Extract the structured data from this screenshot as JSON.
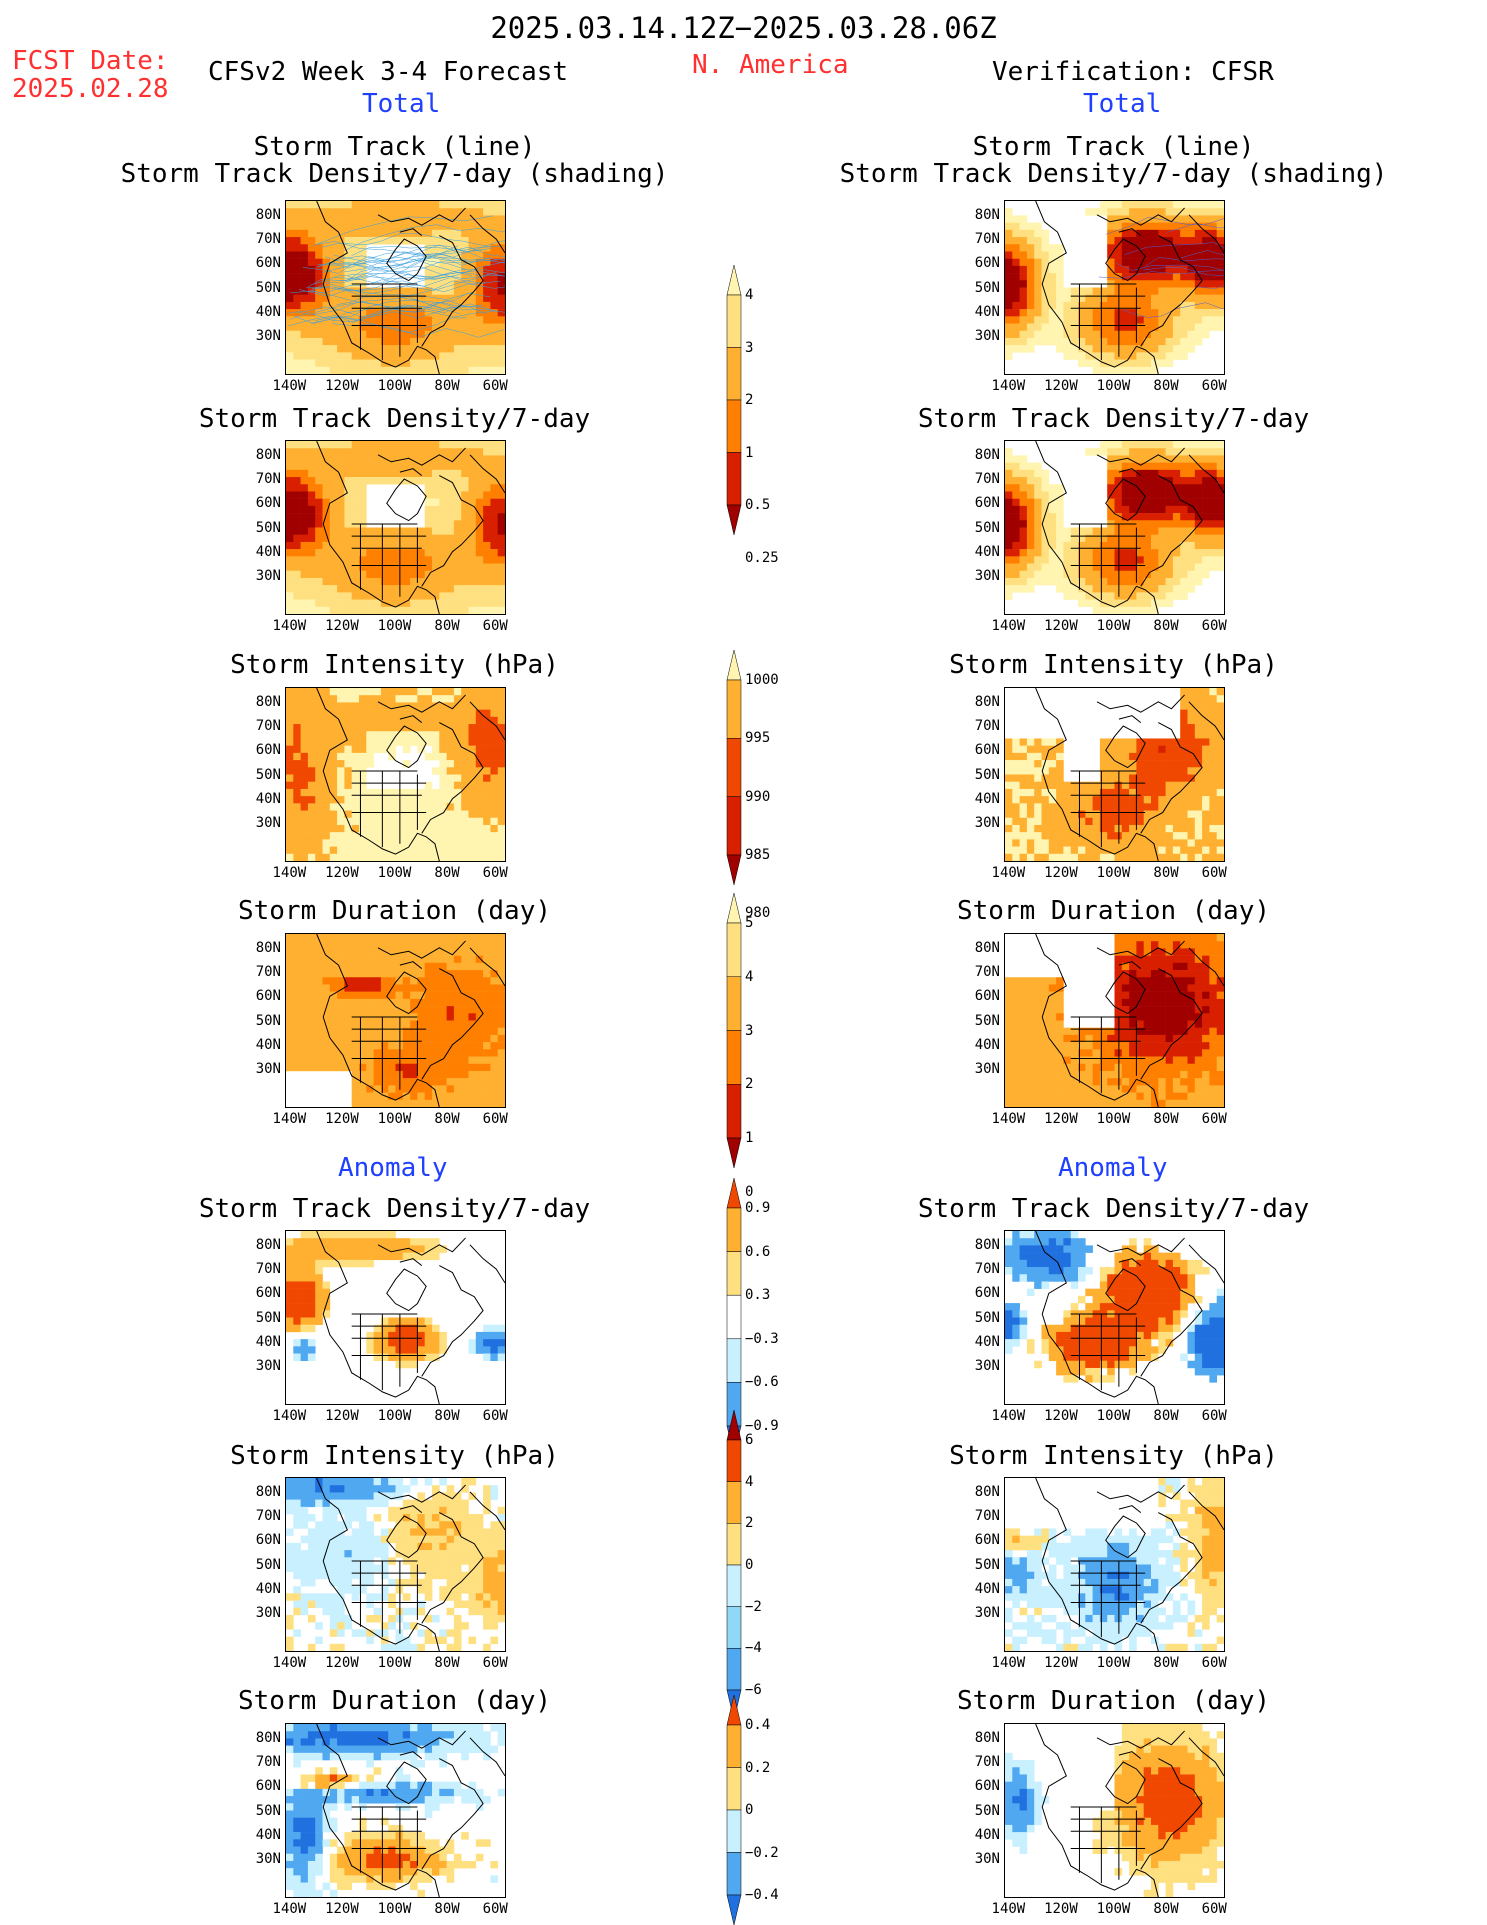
{
  "header": {
    "date_range": "2025.03.14.12Z−2025.03.28.06Z",
    "fcst_label": "FCST Date:",
    "fcst_date": "2025.02.28",
    "model_title": "CFSv2 Week 3-4 Forecast",
    "region": "N. America",
    "verification": "Verification: CFSR"
  },
  "sections": {
    "total": "Total",
    "anomaly": "Anomaly"
  },
  "panel_titles": {
    "storm_track_line": "Storm Track (line)",
    "storm_track_shading": "Storm Track Density/7-day (shading)",
    "density": "Storm Track Density/7-day",
    "intensity": "Storm Intensity (hPa)",
    "duration": "Storm Duration (day)"
  },
  "axes": {
    "lat_labels": [
      "80N",
      "70N",
      "60N",
      "50N",
      "40N",
      "30N"
    ],
    "lon_labels": [
      "140W",
      "120W",
      "100W",
      "80W",
      "60W"
    ]
  },
  "colorbars": {
    "density_total": [
      "4",
      "3",
      "2",
      "1",
      "0.5",
      "0.25"
    ],
    "intensity_total": [
      "1000",
      "995",
      "990",
      "985",
      "980"
    ],
    "duration_total": [
      "5",
      "4",
      "3",
      "2",
      "1",
      "0"
    ],
    "density_anomaly": [
      "0.9",
      "0.6",
      "0.3",
      "−0.3",
      "−0.6",
      "−0.9"
    ],
    "intensity_anomaly": [
      "6",
      "4",
      "2",
      "0",
      "−2",
      "−4",
      "−6"
    ],
    "duration_anomaly": [
      "0.4",
      "0.2",
      "0",
      "−0.2",
      "−0.4"
    ]
  },
  "colors": {
    "warm": [
      "#fff5b0",
      "#ffe080",
      "#ffb030",
      "#ff8000",
      "#f04800",
      "#d82000",
      "#a00000"
    ],
    "cool": [
      "#c8f0ff",
      "#90d8f8",
      "#50a8f0",
      "#2070e0"
    ],
    "track_line": "#3aa0e0",
    "text_red": "#ff3030",
    "text_blue": "#2040ff"
  }
}
